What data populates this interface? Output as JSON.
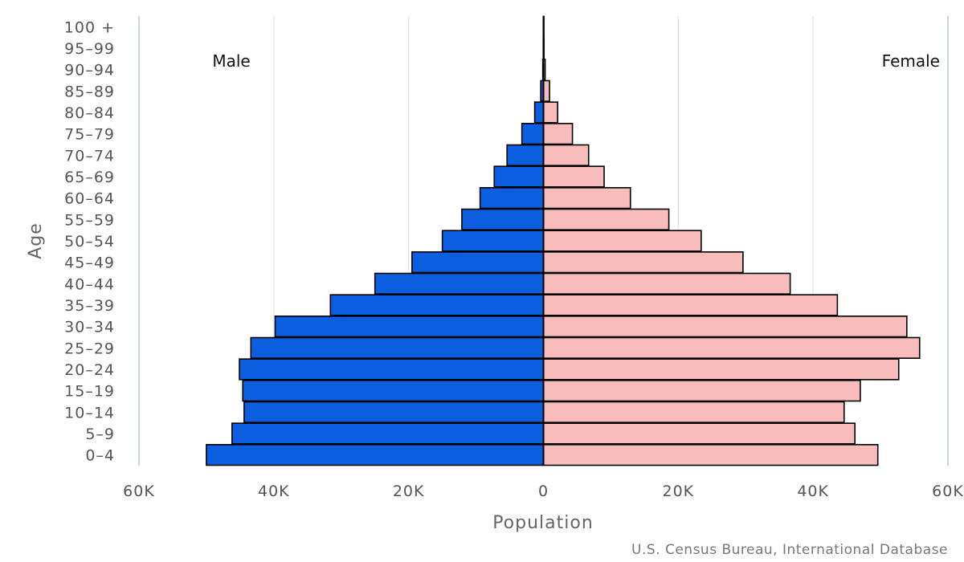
{
  "chart_data": {
    "type": "bar",
    "orientation": "horizontal-population-pyramid",
    "categories": [
      "0-4",
      "5-9",
      "10-14",
      "15-19",
      "20-24",
      "25-29",
      "30-34",
      "35-39",
      "40-44",
      "45-49",
      "50-54",
      "55-59",
      "60-64",
      "65-69",
      "70-74",
      "75-79",
      "80-84",
      "85-89",
      "90-94",
      "95-99",
      "100 +"
    ],
    "series": [
      {
        "name": "Male",
        "color": "#0b5fe0",
        "values": [
          50000,
          46200,
          44400,
          44600,
          45100,
          43400,
          39800,
          31600,
          25000,
          19500,
          15000,
          12100,
          9400,
          7300,
          5400,
          3200,
          1300,
          400,
          100,
          30,
          10
        ]
      },
      {
        "name": "Female",
        "color": "#f9bcbd",
        "values": [
          49600,
          46200,
          44600,
          47000,
          52700,
          55800,
          53900,
          43600,
          36600,
          29600,
          23400,
          18600,
          12900,
          9000,
          6700,
          4300,
          2100,
          900,
          250,
          80,
          20
        ]
      }
    ],
    "xlabel": "Population",
    "ylabel": "Age",
    "xlim": [
      -60000,
      60000
    ],
    "xticks": [
      -60000,
      -40000,
      -20000,
      0,
      20000,
      40000,
      60000
    ],
    "xtick_labels": [
      "60K",
      "40K",
      "20K",
      "0",
      "20K",
      "40K",
      "60K"
    ],
    "side_labels": {
      "left": "Male",
      "right": "Female"
    },
    "source": "U.S. Census Bureau, International Database",
    "grid": true,
    "bar_stroke": "#000000"
  }
}
